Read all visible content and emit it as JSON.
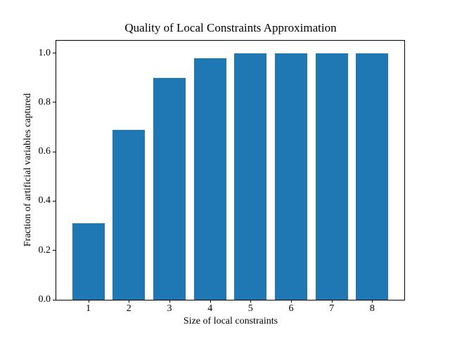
{
  "chart_data": {
    "type": "bar",
    "title": "Quality of Local Constraints Approximation",
    "xlabel": "Size of local constraints",
    "ylabel": "Fraction of artificial variables captured",
    "categories": [
      "1",
      "2",
      "3",
      "4",
      "5",
      "6",
      "7",
      "8"
    ],
    "values": [
      0.31,
      0.69,
      0.9,
      0.98,
      1.0,
      1.0,
      1.0,
      1.0
    ],
    "yticks": [
      "0.0",
      "0.2",
      "0.4",
      "0.6",
      "0.8",
      "1.0"
    ],
    "ytick_values": [
      0.0,
      0.2,
      0.4,
      0.6,
      0.8,
      1.0
    ],
    "xtick_values": [
      1,
      2,
      3,
      4,
      5,
      6,
      7,
      8
    ],
    "ylim": [
      0,
      1.05
    ],
    "xlim": [
      0.21,
      8.79
    ],
    "bar_width": 0.8,
    "bar_color": "#1f77b4",
    "grid": false,
    "legend_position": "none"
  }
}
